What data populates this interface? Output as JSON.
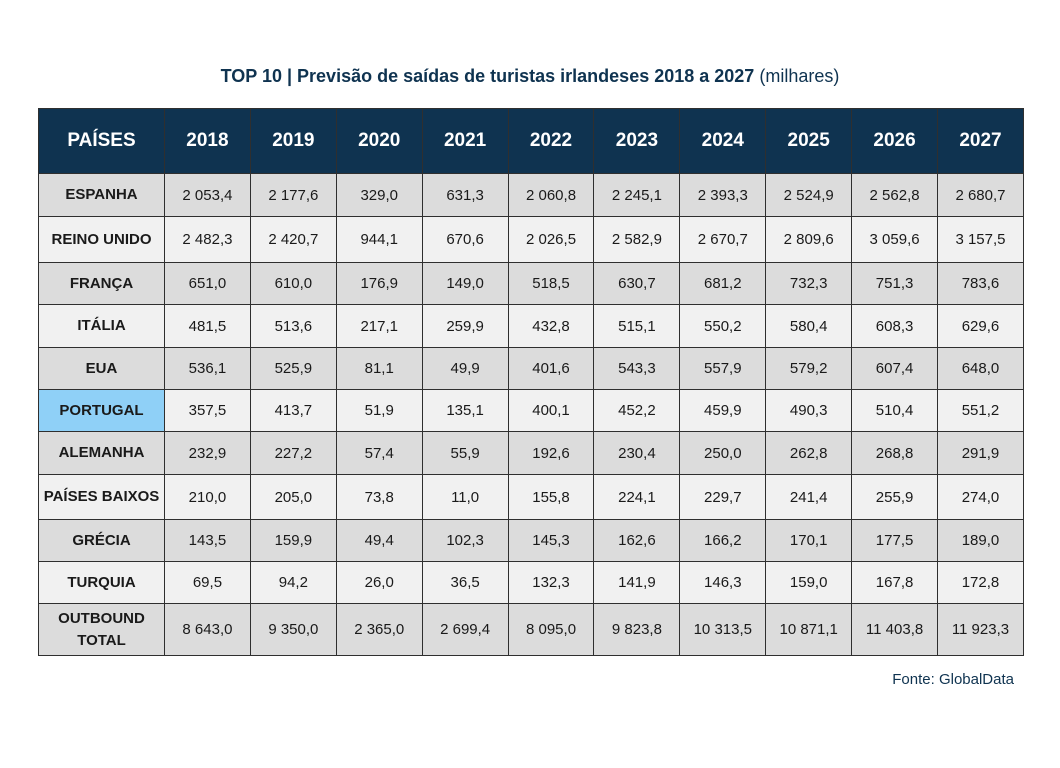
{
  "title": {
    "main": "TOP 10 | Previsão de saídas de turistas irlandeses 2018 a 2027",
    "unit": "(milhares)"
  },
  "source": "Fonte: GlobalData",
  "colors": {
    "header_bg": "#0f3350",
    "highlight": "#8fd0f7",
    "row_dark": "#dcdcdc",
    "row_light": "#f1f1f1"
  },
  "chart_data": {
    "type": "table",
    "title": "TOP 10 | Previsão de saídas de turistas irlandeses 2018 a 2027 (milhares)",
    "columns": [
      "PAÍSES",
      "2018",
      "2019",
      "2020",
      "2021",
      "2022",
      "2023",
      "2024",
      "2025",
      "2026",
      "2027"
    ],
    "highlighted_row": "PORTUGAL",
    "rows": [
      {
        "country": "ESPANHA",
        "values": [
          "2 053,4",
          "2 177,6",
          "329,0",
          "631,3",
          "2 060,8",
          "2 245,1",
          "2 393,3",
          "2 524,9",
          "2 562,8",
          "2 680,7"
        ]
      },
      {
        "country": "REINO UNIDO",
        "values": [
          "2 482,3",
          "2 420,7",
          "944,1",
          "670,6",
          "2 026,5",
          "2 582,9",
          "2 670,7",
          "2 809,6",
          "3 059,6",
          "3 157,5"
        ]
      },
      {
        "country": "FRANÇA",
        "values": [
          "651,0",
          "610,0",
          "176,9",
          "149,0",
          "518,5",
          "630,7",
          "681,2",
          "732,3",
          "751,3",
          "783,6"
        ]
      },
      {
        "country": "ITÁLIA",
        "values": [
          "481,5",
          "513,6",
          "217,1",
          "259,9",
          "432,8",
          "515,1",
          "550,2",
          "580,4",
          "608,3",
          "629,6"
        ]
      },
      {
        "country": "EUA",
        "values": [
          "536,1",
          "525,9",
          "81,1",
          "49,9",
          "401,6",
          "543,3",
          "557,9",
          "579,2",
          "607,4",
          "648,0"
        ]
      },
      {
        "country": "PORTUGAL",
        "values": [
          "357,5",
          "413,7",
          "51,9",
          "135,1",
          "400,1",
          "452,2",
          "459,9",
          "490,3",
          "510,4",
          "551,2"
        ]
      },
      {
        "country": "ALEMANHA",
        "values": [
          "232,9",
          "227,2",
          "57,4",
          "55,9",
          "192,6",
          "230,4",
          "250,0",
          "262,8",
          "268,8",
          "291,9"
        ]
      },
      {
        "country": "PAÍSES BAIXOS",
        "values": [
          "210,0",
          "205,0",
          "73,8",
          "11,0",
          "155,8",
          "224,1",
          "229,7",
          "241,4",
          "255,9",
          "274,0"
        ]
      },
      {
        "country": "GRÉCIA",
        "values": [
          "143,5",
          "159,9",
          "49,4",
          "102,3",
          "145,3",
          "162,6",
          "166,2",
          "170,1",
          "177,5",
          "189,0"
        ]
      },
      {
        "country": "TURQUIA",
        "values": [
          "69,5",
          "94,2",
          "26,0",
          "36,5",
          "132,3",
          "141,9",
          "146,3",
          "159,0",
          "167,8",
          "172,8"
        ]
      },
      {
        "country": "OUTBOUND TOTAL",
        "values": [
          "8 643,0",
          "9 350,0",
          "2 365,0",
          "2 699,4",
          "8 095,0",
          "9 823,8",
          "10 313,5",
          "10 871,1",
          "11 403,8",
          "11 923,3"
        ]
      }
    ]
  }
}
